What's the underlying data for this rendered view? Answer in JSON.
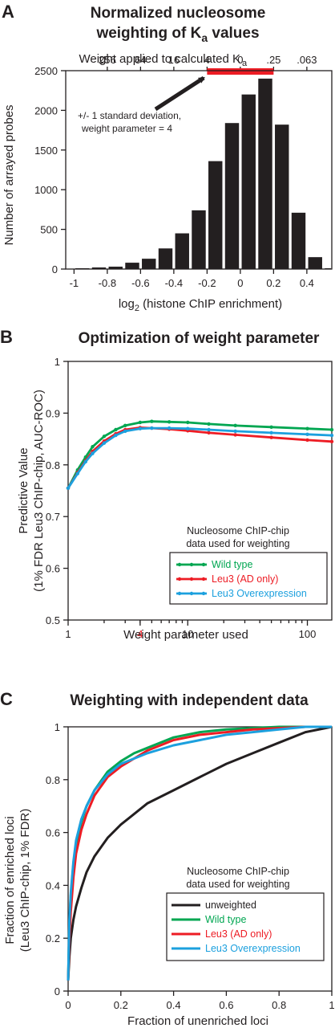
{
  "panels": {
    "A": {
      "letter": "A",
      "title_line1": "Normalized nucleosome",
      "title_line2_prefix": "weighting of K",
      "title_line2_sub": "a",
      "title_line2_suffix": " values",
      "top_axis_label_prefix": "Weight applied to calculated K",
      "top_axis_label_sub": "a",
      "top_ticks": [
        "256",
        "64",
        "16",
        "4",
        "0",
        ".25",
        ".063"
      ],
      "annotation_line1": "+/- 1 standard deviation,",
      "annotation_line2": "weight parameter = 4",
      "xlabel_prefix": "log",
      "xlabel_sub": "2",
      "xlabel_suffix": " (histone ChIP enrichment)",
      "ylabel": "Number of arrayed probes",
      "x_ticks": [
        "-1",
        "-0.8",
        "-0.6",
        "-0.4",
        "-0.2",
        "0",
        "0.2",
        "0.4"
      ],
      "y_ticks": [
        "0",
        "500",
        "1000",
        "1500",
        "2000",
        "2500"
      ],
      "colors": {
        "bars": "#231f20",
        "sd_bar": "#ed1c24",
        "arrow": "#231f20"
      }
    },
    "B": {
      "letter": "B",
      "title": "Optimization of weight parameter",
      "ylabel_line1": "Predictive Value",
      "ylabel_line2": "(1% FDR Leu3 ChIP-chip, AUC-ROC)",
      "xlabel": "Weight parameter used",
      "x_ticks": [
        "1",
        "4",
        "10",
        "100"
      ],
      "y_ticks": [
        "0.5",
        "0.6",
        "0.7",
        "0.8",
        "0.9",
        "1"
      ],
      "legend_head_line1": "Nucleosome ChIP-chip",
      "legend_head_line2": "data used for weighting"
    },
    "C": {
      "letter": "C",
      "title": "Weighting with independent data",
      "ylabel_line1": "Fraction of enriched loci",
      "ylabel_line2": "(Leu3 ChIP-chip, 1% FDR)",
      "xlabel": "Fraction of unenriched loci",
      "x_ticks": [
        "0",
        "0.2",
        "0.4",
        "0.6",
        "0.8",
        "1"
      ],
      "y_ticks": [
        "0",
        "0.2",
        "0.4",
        "0.6",
        "0.8",
        "1"
      ],
      "legend_head_line1": "Nucleosome ChIP-chip",
      "legend_head_line2": "data used for weighting"
    }
  },
  "chart_data": [
    {
      "type": "bar",
      "panel": "A",
      "x_tick_labels": [
        "-1",
        "-0.8",
        "-0.6",
        "-0.4",
        "-0.2",
        "0",
        "0.2",
        "0.4"
      ],
      "bin_centers": [
        -0.95,
        -0.85,
        -0.75,
        -0.65,
        -0.55,
        -0.45,
        -0.35,
        -0.25,
        -0.15,
        -0.05,
        0.05,
        0.15,
        0.25,
        0.35,
        0.45
      ],
      "bin_width": 0.1,
      "values": [
        10,
        20,
        30,
        80,
        130,
        260,
        450,
        740,
        1360,
        1840,
        2200,
        2400,
        1820,
        710,
        150
      ],
      "trailing_bin": {
        "center": 0.55,
        "value": 10
      },
      "xlim": [
        -1.05,
        0.55
      ],
      "ylim": [
        0,
        2500
      ],
      "sd_bar_x": [
        -0.2,
        0.2
      ],
      "xlabel": "log2 (histone ChIP enrichment)",
      "ylabel": "Number of arrayed probes",
      "legend": "none",
      "grid": false
    },
    {
      "type": "line",
      "panel": "B",
      "x_scale": "log",
      "xlim": [
        1,
        160
      ],
      "ylim": [
        0.5,
        1.0
      ],
      "x": [
        1,
        1.2,
        1.4,
        1.6,
        2,
        2.5,
        3,
        4,
        5,
        7,
        10,
        15,
        25,
        50,
        100,
        160
      ],
      "series": [
        {
          "name": "Wild type",
          "color": "#00a651",
          "values": [
            0.755,
            0.79,
            0.815,
            0.835,
            0.855,
            0.868,
            0.876,
            0.882,
            0.884,
            0.883,
            0.882,
            0.879,
            0.876,
            0.873,
            0.87,
            0.868
          ]
        },
        {
          "name": "Leu3  (AD only)",
          "color": "#ed1c24",
          "values": [
            0.755,
            0.785,
            0.808,
            0.826,
            0.846,
            0.86,
            0.868,
            0.872,
            0.871,
            0.869,
            0.866,
            0.862,
            0.858,
            0.853,
            0.848,
            0.845
          ]
        },
        {
          "name": "Leu3 Overexpression",
          "color": "#1ca0de",
          "values": [
            0.755,
            0.783,
            0.806,
            0.822,
            0.842,
            0.857,
            0.865,
            0.87,
            0.871,
            0.871,
            0.87,
            0.868,
            0.865,
            0.862,
            0.859,
            0.857
          ]
        }
      ],
      "legend": "bottom-right",
      "grid": false
    },
    {
      "type": "line",
      "panel": "C",
      "xlim": [
        0,
        1
      ],
      "ylim": [
        0,
        1
      ],
      "x": [
        0,
        0.005,
        0.01,
        0.02,
        0.03,
        0.05,
        0.07,
        0.1,
        0.15,
        0.2,
        0.25,
        0.3,
        0.4,
        0.5,
        0.6,
        0.7,
        0.8,
        0.9,
        1.0
      ],
      "series": [
        {
          "name": "unweighted",
          "color": "#231f20",
          "values": [
            0.04,
            0.13,
            0.2,
            0.27,
            0.32,
            0.39,
            0.45,
            0.51,
            0.58,
            0.63,
            0.67,
            0.71,
            0.76,
            0.81,
            0.86,
            0.9,
            0.94,
            0.98,
            1.0
          ]
        },
        {
          "name": "Wild type",
          "color": "#00a651",
          "values": [
            0.04,
            0.25,
            0.36,
            0.48,
            0.56,
            0.64,
            0.7,
            0.76,
            0.83,
            0.87,
            0.9,
            0.92,
            0.96,
            0.98,
            0.99,
            0.995,
            1.0,
            1.0,
            1.0
          ]
        },
        {
          "name": "Leu3  (AD only)",
          "color": "#ed1c24",
          "values": [
            0.04,
            0.2,
            0.3,
            0.43,
            0.52,
            0.61,
            0.67,
            0.74,
            0.81,
            0.85,
            0.88,
            0.91,
            0.95,
            0.97,
            0.98,
            0.99,
            0.995,
            1.0,
            1.0
          ]
        },
        {
          "name": "Leu3 Overexpression",
          "color": "#1ca0de",
          "values": [
            0.04,
            0.27,
            0.37,
            0.49,
            0.57,
            0.65,
            0.7,
            0.76,
            0.82,
            0.86,
            0.88,
            0.9,
            0.93,
            0.95,
            0.97,
            0.98,
            0.99,
            1.0,
            1.0
          ]
        }
      ],
      "legend": "bottom-right",
      "grid": false
    }
  ]
}
